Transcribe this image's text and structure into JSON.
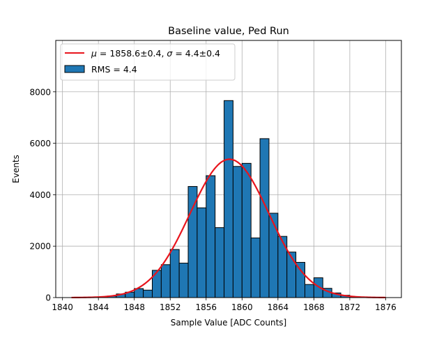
{
  "chart_data": {
    "type": "bar",
    "title": "Baseline value, Ped Run",
    "xlabel": "Sample Value [ADC Counts]",
    "ylabel": "Events",
    "xlim": [
      1839.25,
      1877.75
    ],
    "ylim": [
      0,
      9999
    ],
    "grid": true,
    "legend_position": "top-left",
    "x_ticks": [
      1840,
      1844,
      1848,
      1852,
      1856,
      1860,
      1864,
      1868,
      1872,
      1876
    ],
    "y_ticks": [
      0,
      2000,
      4000,
      6000,
      8000
    ],
    "histogram": {
      "name": "RMS = 4.4",
      "bin_width": 1,
      "bin_edges_start": 1845,
      "bins": [
        {
          "x0": 1845,
          "x1": 1846,
          "count": 60
        },
        {
          "x0": 1846,
          "x1": 1847,
          "count": 140
        },
        {
          "x0": 1847,
          "x1": 1848,
          "count": 210
        },
        {
          "x0": 1848,
          "x1": 1849,
          "count": 350
        },
        {
          "x0": 1849,
          "x1": 1850,
          "count": 290
        },
        {
          "x0": 1850,
          "x1": 1851,
          "count": 1060
        },
        {
          "x0": 1851,
          "x1": 1852,
          "count": 1280
        },
        {
          "x0": 1852,
          "x1": 1853,
          "count": 1870
        },
        {
          "x0": 1853,
          "x1": 1854,
          "count": 1340
        },
        {
          "x0": 1854,
          "x1": 1855,
          "count": 4320
        },
        {
          "x0": 1855,
          "x1": 1856,
          "count": 3490
        },
        {
          "x0": 1856,
          "x1": 1857,
          "count": 4740
        },
        {
          "x0": 1857,
          "x1": 1858,
          "count": 2720
        },
        {
          "x0": 1858,
          "x1": 1859,
          "count": 7660
        },
        {
          "x0": 1859,
          "x1": 1860,
          "count": 5100
        },
        {
          "x0": 1860,
          "x1": 1861,
          "count": 5220
        },
        {
          "x0": 1861,
          "x1": 1862,
          "count": 2320
        },
        {
          "x0": 1862,
          "x1": 1863,
          "count": 6180
        },
        {
          "x0": 1863,
          "x1": 1864,
          "count": 3280
        },
        {
          "x0": 1864,
          "x1": 1865,
          "count": 2380
        },
        {
          "x0": 1865,
          "x1": 1866,
          "count": 1770
        },
        {
          "x0": 1866,
          "x1": 1867,
          "count": 1370
        },
        {
          "x0": 1867,
          "x1": 1868,
          "count": 510
        },
        {
          "x0": 1868,
          "x1": 1869,
          "count": 770
        },
        {
          "x0": 1869,
          "x1": 1870,
          "count": 360
        },
        {
          "x0": 1870,
          "x1": 1871,
          "count": 180
        },
        {
          "x0": 1871,
          "x1": 1872,
          "count": 90
        },
        {
          "x0": 1872,
          "x1": 1873,
          "count": 40
        }
      ],
      "color": "#1f77b4",
      "edgecolor": "#000000"
    },
    "fit": {
      "name": "μ = 1858.6±0.4, σ = 4.4±0.4",
      "label_mu_symbol": "μ",
      "label_mu_value": " = 1858.6±0.4, ",
      "label_sigma_symbol": "σ",
      "label_sigma_value": " = 4.4±0.4",
      "type": "gaussian",
      "mu": 1858.6,
      "sigma": 4.4,
      "amplitude": 5380,
      "x_range": [
        1841,
        1876
      ],
      "color": "#e8141c"
    },
    "legend": {
      "entries": [
        "μ = 1858.6±0.4, σ = 4.4±0.4",
        "RMS = 4.4"
      ]
    }
  }
}
